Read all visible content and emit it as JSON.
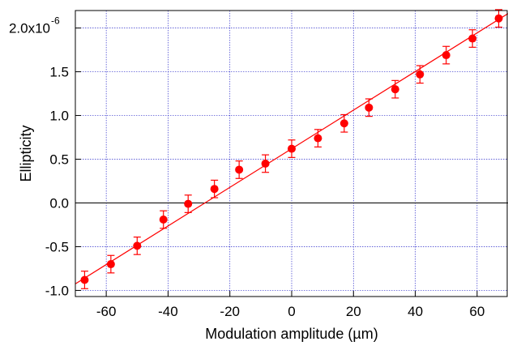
{
  "chart_data": {
    "type": "scatter",
    "title": "",
    "xlabel": "Modulation amplitude (µm)",
    "ylabel": "Ellipticity",
    "xlim": [
      -70,
      70
    ],
    "ylim": [
      -1.07e-06,
      2.2e-06
    ],
    "x_ticks": [
      -60,
      -40,
      -20,
      0,
      20,
      40,
      60
    ],
    "x_tick_labels": [
      "-60",
      "-40",
      "-20",
      "0",
      "20",
      "40",
      "60"
    ],
    "y_ticks": [
      -1e-06,
      -5e-07,
      0.0,
      5e-07,
      1e-06,
      1.5e-06
    ],
    "y_tick_labels": [
      "-1.0",
      "-0.5",
      "0.0",
      "0.5",
      "1.0",
      "1.5"
    ],
    "y_top_tick": {
      "value": 2e-06,
      "base": "2.0x10",
      "exponent": "-6"
    },
    "grid": true,
    "zero_line": true,
    "legend": "none",
    "colors": {
      "markers": "#ff0000",
      "fit_line": "#ff0000",
      "grid": "#3333cc",
      "axes": "#000000"
    },
    "series": [
      {
        "type": "scatter",
        "marker": "circle",
        "x": [
          -67,
          -58.5,
          -50,
          -41.5,
          -33.5,
          -25,
          -17,
          -8.5,
          0,
          8.5,
          17,
          25,
          33.5,
          41.5,
          50,
          58.5,
          67
        ],
        "y": [
          -8.8e-07,
          -7e-07,
          -4.9e-07,
          -1.9e-07,
          -1e-08,
          1.6e-07,
          3.8e-07,
          4.5e-07,
          6.2e-07,
          7.4e-07,
          9.1e-07,
          1.09e-06,
          1.3e-06,
          1.47e-06,
          1.69e-06,
          1.88e-06,
          2.11e-06
        ],
        "yerr": [
          1e-07,
          1e-07,
          1e-07,
          1e-07,
          1e-07,
          1e-07,
          1e-07,
          1e-07,
          1e-07,
          1e-07,
          1e-07,
          1e-07,
          1e-07,
          1e-07,
          1e-07,
          1e-07,
          1e-07
        ]
      },
      {
        "type": "line",
        "x": [
          -70,
          70
        ],
        "y": [
          -9.25e-07,
          2.165e-06
        ]
      }
    ]
  }
}
